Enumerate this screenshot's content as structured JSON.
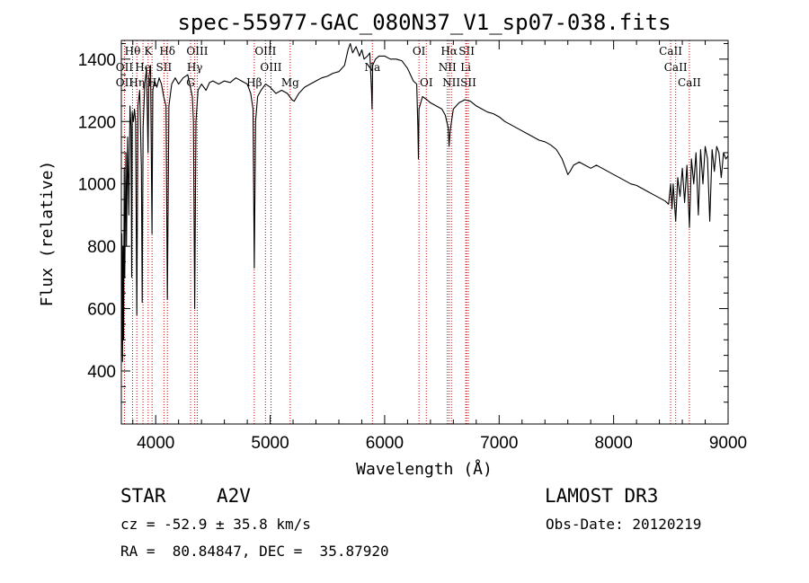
{
  "chart_data": {
    "type": "line",
    "title": "spec-55977-GAC_080N37_V1_sp07-038.fits",
    "xlabel": "Wavelength (Å)",
    "ylabel": "Flux (relative)",
    "xlim": [
      3700,
      9000
    ],
    "ylim": [
      230,
      1460
    ],
    "x_ticks": [
      4000,
      5000,
      6000,
      7000,
      8000,
      9000
    ],
    "x_tick_labels": [
      "4000",
      "5000",
      "6000",
      "7000",
      "8000",
      "9000"
    ],
    "y_ticks": [
      400,
      600,
      800,
      1000,
      1200,
      1400
    ],
    "y_tick_labels": [
      "400",
      "600",
      "800",
      "1000",
      "1200",
      "1400"
    ],
    "series": [
      {
        "name": "spectrum",
        "color": "#000000",
        "points": [
          [
            3700,
            450
          ],
          [
            3705,
            840
          ],
          [
            3710,
            430
          ],
          [
            3715,
            800
          ],
          [
            3720,
            500
          ],
          [
            3725,
            1050
          ],
          [
            3730,
            700
          ],
          [
            3740,
            1100
          ],
          [
            3745,
            800
          ],
          [
            3755,
            1150
          ],
          [
            3765,
            900
          ],
          [
            3775,
            1250
          ],
          [
            3785,
            1180
          ],
          [
            3790,
            700
          ],
          [
            3795,
            1230
          ],
          [
            3805,
            1200
          ],
          [
            3815,
            1240
          ],
          [
            3825,
            1200
          ],
          [
            3835,
            580
          ],
          [
            3845,
            1250
          ],
          [
            3860,
            1300
          ],
          [
            3875,
            1050
          ],
          [
            3882,
            620
          ],
          [
            3890,
            1180
          ],
          [
            3905,
            1320
          ],
          [
            3920,
            1370
          ],
          [
            3933,
            1100
          ],
          [
            3940,
            1340
          ],
          [
            3955,
            1380
          ],
          [
            3968,
            840
          ],
          [
            3975,
            1300
          ],
          [
            3990,
            1330
          ],
          [
            4010,
            1310
          ],
          [
            4030,
            1340
          ],
          [
            4050,
            1320
          ],
          [
            4070,
            1280
          ],
          [
            4090,
            1250
          ],
          [
            4102,
            630
          ],
          [
            4115,
            1250
          ],
          [
            4140,
            1320
          ],
          [
            4170,
            1340
          ],
          [
            4200,
            1320
          ],
          [
            4240,
            1340
          ],
          [
            4280,
            1350
          ],
          [
            4320,
            1280
          ],
          [
            4330,
            1200
          ],
          [
            4341,
            600
          ],
          [
            4352,
            1200
          ],
          [
            4370,
            1300
          ],
          [
            4400,
            1320
          ],
          [
            4440,
            1300
          ],
          [
            4470,
            1325
          ],
          [
            4500,
            1330
          ],
          [
            4550,
            1320
          ],
          [
            4600,
            1330
          ],
          [
            4650,
            1325
          ],
          [
            4700,
            1340
          ],
          [
            4750,
            1330
          ],
          [
            4800,
            1320
          ],
          [
            4830,
            1290
          ],
          [
            4850,
            1240
          ],
          [
            4861,
            730
          ],
          [
            4872,
            1200
          ],
          [
            4890,
            1280
          ],
          [
            4920,
            1300
          ],
          [
            4960,
            1320
          ],
          [
            5000,
            1310
          ],
          [
            5050,
            1290
          ],
          [
            5100,
            1300
          ],
          [
            5150,
            1290
          ],
          [
            5190,
            1270
          ],
          [
            5210,
            1265
          ],
          [
            5250,
            1290
          ],
          [
            5300,
            1310
          ],
          [
            5350,
            1320
          ],
          [
            5400,
            1330
          ],
          [
            5450,
            1340
          ],
          [
            5500,
            1345
          ],
          [
            5550,
            1355
          ],
          [
            5600,
            1360
          ],
          [
            5650,
            1380
          ],
          [
            5680,
            1430
          ],
          [
            5700,
            1450
          ],
          [
            5720,
            1420
          ],
          [
            5750,
            1440
          ],
          [
            5780,
            1410
          ],
          [
            5800,
            1430
          ],
          [
            5820,
            1400
          ],
          [
            5850,
            1410
          ],
          [
            5870,
            1420
          ],
          [
            5885,
            1300
          ],
          [
            5890,
            1240
          ],
          [
            5895,
            1380
          ],
          [
            5920,
            1400
          ],
          [
            5950,
            1410
          ],
          [
            6000,
            1410
          ],
          [
            6050,
            1400
          ],
          [
            6100,
            1400
          ],
          [
            6150,
            1395
          ],
          [
            6200,
            1370
          ],
          [
            6250,
            1330
          ],
          [
            6280,
            1320
          ],
          [
            6290,
            1180
          ],
          [
            6295,
            1080
          ],
          [
            6300,
            1240
          ],
          [
            6330,
            1280
          ],
          [
            6370,
            1270
          ],
          [
            6400,
            1260
          ],
          [
            6450,
            1250
          ],
          [
            6500,
            1240
          ],
          [
            6530,
            1220
          ],
          [
            6555,
            1180
          ],
          [
            6563,
            1120
          ],
          [
            6572,
            1170
          ],
          [
            6600,
            1240
          ],
          [
            6650,
            1260
          ],
          [
            6700,
            1270
          ],
          [
            6750,
            1265
          ],
          [
            6800,
            1250
          ],
          [
            6850,
            1240
          ],
          [
            6900,
            1230
          ],
          [
            6950,
            1225
          ],
          [
            7000,
            1215
          ],
          [
            7050,
            1200
          ],
          [
            7100,
            1190
          ],
          [
            7150,
            1180
          ],
          [
            7200,
            1170
          ],
          [
            7250,
            1160
          ],
          [
            7300,
            1150
          ],
          [
            7350,
            1140
          ],
          [
            7400,
            1135
          ],
          [
            7450,
            1125
          ],
          [
            7500,
            1110
          ],
          [
            7550,
            1080
          ],
          [
            7580,
            1050
          ],
          [
            7600,
            1030
          ],
          [
            7620,
            1040
          ],
          [
            7650,
            1060
          ],
          [
            7700,
            1070
          ],
          [
            7750,
            1060
          ],
          [
            7800,
            1050
          ],
          [
            7850,
            1060
          ],
          [
            7900,
            1050
          ],
          [
            7950,
            1040
          ],
          [
            8000,
            1030
          ],
          [
            8050,
            1020
          ],
          [
            8100,
            1010
          ],
          [
            8150,
            1000
          ],
          [
            8200,
            995
          ],
          [
            8250,
            985
          ],
          [
            8300,
            975
          ],
          [
            8350,
            965
          ],
          [
            8400,
            955
          ],
          [
            8450,
            945
          ],
          [
            8480,
            935
          ],
          [
            8498,
            1000
          ],
          [
            8510,
            920
          ],
          [
            8520,
            1000
          ],
          [
            8542,
            880
          ],
          [
            8560,
            1020
          ],
          [
            8580,
            960
          ],
          [
            8600,
            1050
          ],
          [
            8620,
            940
          ],
          [
            8640,
            1060
          ],
          [
            8662,
            860
          ],
          [
            8680,
            1080
          ],
          [
            8700,
            1000
          ],
          [
            8720,
            1100
          ],
          [
            8740,
            900
          ],
          [
            8760,
            1110
          ],
          [
            8780,
            1000
          ],
          [
            8800,
            1120
          ],
          [
            8820,
            1080
          ],
          [
            8840,
            880
          ],
          [
            8860,
            1110
          ],
          [
            8880,
            1040
          ],
          [
            8900,
            1120
          ],
          [
            8920,
            1100
          ],
          [
            8940,
            1020
          ],
          [
            8960,
            1100
          ],
          [
            8980,
            1080
          ],
          [
            9000,
            1090
          ]
        ]
      }
    ],
    "spectral_lines": [
      {
        "name": "Hθ",
        "wavelength": 3798,
        "label_tier": 0
      },
      {
        "name": "OII",
        "wavelength": 3727,
        "label_tier": 1
      },
      {
        "name": "OII",
        "wavelength": 3727,
        "label_tier": 2
      },
      {
        "name": "Hη",
        "wavelength": 3835,
        "label_tier": 2
      },
      {
        "name": "He",
        "wavelength": 3889,
        "label_tier": 1
      },
      {
        "name": "K",
        "wavelength": 3934,
        "label_tier": 0
      },
      {
        "name": "H",
        "wavelength": 3968,
        "label_tier": 2
      },
      {
        "name": "SII",
        "wavelength": 4072,
        "label_tier": 1
      },
      {
        "name": "Hδ",
        "wavelength": 4102,
        "label_tier": 0
      },
      {
        "name": "G",
        "wavelength": 4305,
        "label_tier": 2
      },
      {
        "name": "OIII",
        "wavelength": 4363,
        "label_tier": 0
      },
      {
        "name": "Hγ",
        "wavelength": 4341,
        "label_tier": 1
      },
      {
        "name": "Hβ",
        "wavelength": 4861,
        "label_tier": 2
      },
      {
        "name": "OIII",
        "wavelength": 4959,
        "label_tier": 0
      },
      {
        "name": "OIII",
        "wavelength": 5007,
        "label_tier": 1
      },
      {
        "name": "Mg",
        "wavelength": 5175,
        "label_tier": 2
      },
      {
        "name": "Na",
        "wavelength": 5893,
        "label_tier": 1
      },
      {
        "name": "OI",
        "wavelength": 6300,
        "label_tier": 0
      },
      {
        "name": "OI",
        "wavelength": 6364,
        "label_tier": 2
      },
      {
        "name": "Hα",
        "wavelength": 6563,
        "label_tier": 0
      },
      {
        "name": "NII",
        "wavelength": 6548,
        "label_tier": 1
      },
      {
        "name": "NII",
        "wavelength": 6583,
        "label_tier": 2
      },
      {
        "name": "SII",
        "wavelength": 6716,
        "label_tier": 0
      },
      {
        "name": "Li",
        "wavelength": 6708,
        "label_tier": 1
      },
      {
        "name": "SII",
        "wavelength": 6731,
        "label_tier": 2
      },
      {
        "name": "CaII",
        "wavelength": 8498,
        "label_tier": 0
      },
      {
        "name": "CaII",
        "wavelength": 8542,
        "label_tier": 1
      },
      {
        "name": "CaII",
        "wavelength": 8662,
        "label_tier": 2
      }
    ],
    "line_color": "#cc0000"
  },
  "info": {
    "object_class": "STAR",
    "subclass": "A2V",
    "survey": "LAMOST DR3",
    "cz": "cz = -52.9 ± 35.8 km/s",
    "obs_date": "Obs-Date: 20120219",
    "coords": "RA =  80.84847, DEC =  35.87920"
  }
}
